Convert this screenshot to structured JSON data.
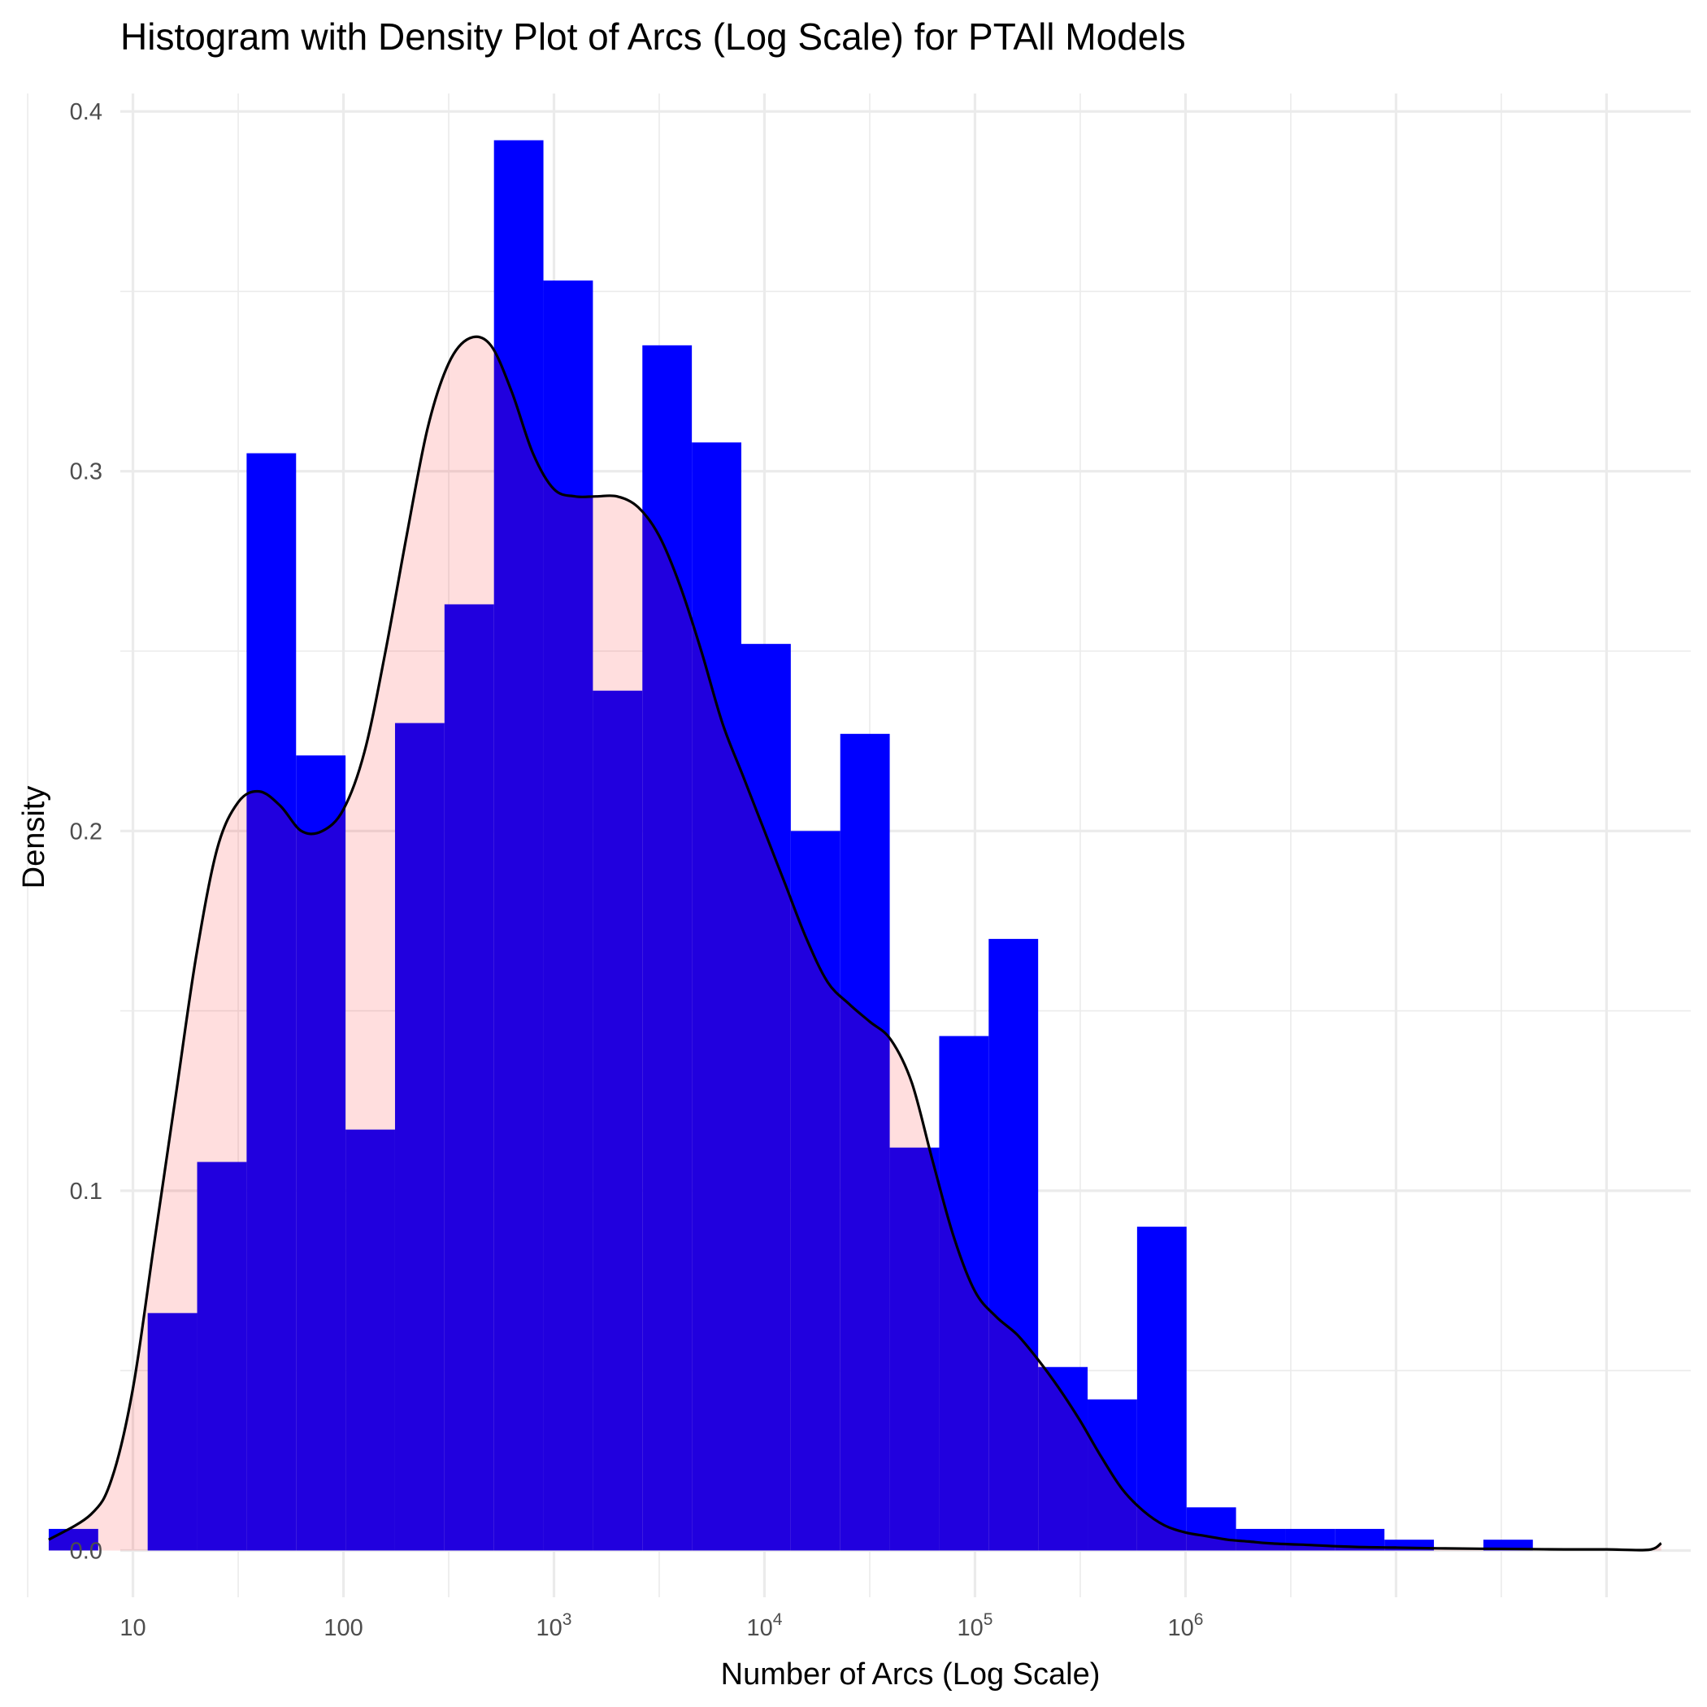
{
  "chart_data": {
    "type": "bar",
    "title": "Histogram with Density Plot of Arcs (Log Scale) for PTAll Models",
    "xlabel": "Number of Arcs (Log Scale)",
    "ylabel": "Density",
    "x_scale": "log10",
    "xlim": [
      0.94,
      8.4
    ],
    "ylim": [
      -0.013,
      0.405
    ],
    "y_ticks": [
      0.0,
      0.1,
      0.2,
      0.3,
      0.4
    ],
    "y_tick_labels": [
      "0.0",
      "0.1",
      "0.2",
      "0.3",
      "0.4"
    ],
    "x_ticks": [
      {
        "base": "10",
        "exponent": "",
        "log10": 1
      },
      {
        "base": "100",
        "exponent": "",
        "log10": 2
      },
      {
        "base": "10",
        "exponent": "3",
        "log10": 3
      },
      {
        "base": "10",
        "exponent": "4",
        "log10": 4
      },
      {
        "base": "10",
        "exponent": "5",
        "log10": 5
      },
      {
        "base": "10",
        "exponent": "6",
        "log10": 6
      }
    ],
    "x_minor_gridlines_log10": [
      0.5,
      1.5,
      2.5,
      3.5,
      4.5,
      5.5,
      6.5,
      7.5
    ],
    "x_major_gridlines_log10": [
      1,
      2,
      3,
      4,
      5,
      6,
      7,
      8
    ],
    "y_minor_gridlines": [
      0.05,
      0.15,
      0.25,
      0.35
    ],
    "grid": true,
    "bin_width_log10": 0.235,
    "bin_start_log10": 0.6,
    "series": [
      {
        "type": "histogram",
        "color": "#0000FF",
        "values": [
          0.006,
          0.0,
          0.066,
          0.108,
          0.305,
          0.221,
          0.117,
          0.23,
          0.263,
          0.392,
          0.353,
          0.239,
          0.335,
          0.308,
          0.252,
          0.2,
          0.227,
          0.112,
          0.143,
          0.17,
          0.051,
          0.042,
          0.09,
          0.012,
          0.006,
          0.006,
          0.006,
          0.003,
          0.0,
          0.003
        ]
      },
      {
        "type": "density",
        "line_color": "#000000",
        "fill_color": "#FF0000",
        "fill_opacity": 0.13,
        "x_log10": [
          0.6,
          0.8,
          0.9,
          1.0,
          1.1,
          1.2,
          1.3,
          1.4,
          1.5,
          1.6,
          1.7,
          1.8,
          1.9,
          2.0,
          2.1,
          2.2,
          2.3,
          2.4,
          2.5,
          2.6,
          2.7,
          2.8,
          2.9,
          3.0,
          3.1,
          3.2,
          3.3,
          3.4,
          3.5,
          3.6,
          3.7,
          3.8,
          3.9,
          4.0,
          4.1,
          4.2,
          4.3,
          4.4,
          4.5,
          4.6,
          4.7,
          4.8,
          4.9,
          5.0,
          5.1,
          5.2,
          5.3,
          5.4,
          5.5,
          5.6,
          5.7,
          5.8,
          5.9,
          6.0,
          6.1,
          6.2,
          6.3,
          6.4,
          6.6,
          6.8,
          7.0,
          7.2,
          7.4,
          7.6,
          7.8,
          8.0,
          8.2,
          8.26
        ],
        "y": [
          0.003,
          0.01,
          0.02,
          0.045,
          0.085,
          0.125,
          0.165,
          0.195,
          0.208,
          0.211,
          0.207,
          0.2,
          0.2,
          0.206,
          0.222,
          0.25,
          0.282,
          0.312,
          0.33,
          0.337,
          0.335,
          0.322,
          0.305,
          0.295,
          0.293,
          0.293,
          0.293,
          0.29,
          0.282,
          0.268,
          0.25,
          0.23,
          0.215,
          0.2,
          0.185,
          0.17,
          0.158,
          0.152,
          0.147,
          0.142,
          0.13,
          0.108,
          0.087,
          0.072,
          0.065,
          0.06,
          0.053,
          0.045,
          0.036,
          0.026,
          0.017,
          0.011,
          0.007,
          0.005,
          0.004,
          0.003,
          0.0025,
          0.002,
          0.0015,
          0.001,
          0.0008,
          0.0006,
          0.0005,
          0.0004,
          0.0003,
          0.0003,
          0.0002,
          0.002
        ]
      }
    ]
  }
}
